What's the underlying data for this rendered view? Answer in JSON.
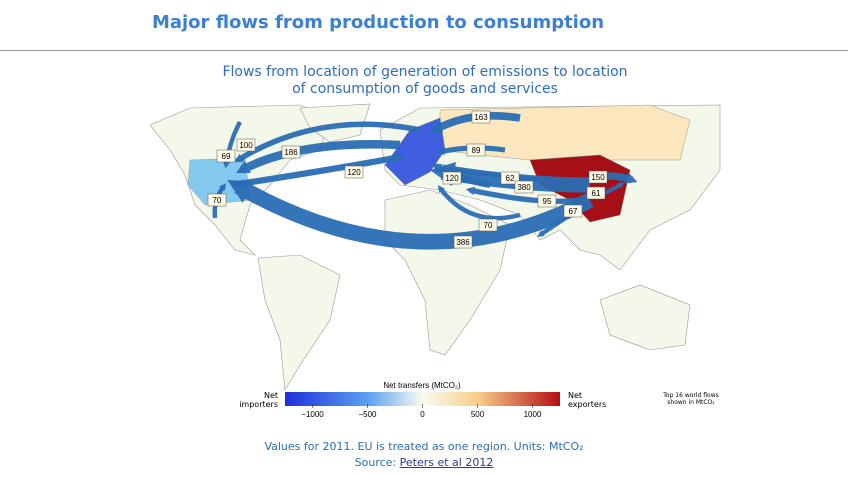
{
  "header": {
    "title": "Major flows from production to consumption"
  },
  "subtitle": "Flows from location of generation of emissions to location of consumption of goods and services",
  "map": {
    "flows": [
      163,
      100,
      69,
      186,
      89,
      120,
      120,
      62,
      380,
      150,
      61,
      95,
      67,
      70,
      70,
      386
    ],
    "legend": {
      "title": "Net transfers (MtCO₂)",
      "left": "Net importers",
      "right": "Net exporters",
      "ticks": [
        {
          "value": -1000,
          "label": "−1000"
        },
        {
          "value": -500,
          "label": "−500"
        },
        0,
        500,
        1000
      ]
    },
    "note": "Top 16 world flows shown in MtCO₂"
  },
  "footer": {
    "note": "Values for 2011. EU is treated as one region. Units: MtCO₂",
    "source_prefix": "Source:",
    "source_link": "Peters et al 2012"
  }
}
